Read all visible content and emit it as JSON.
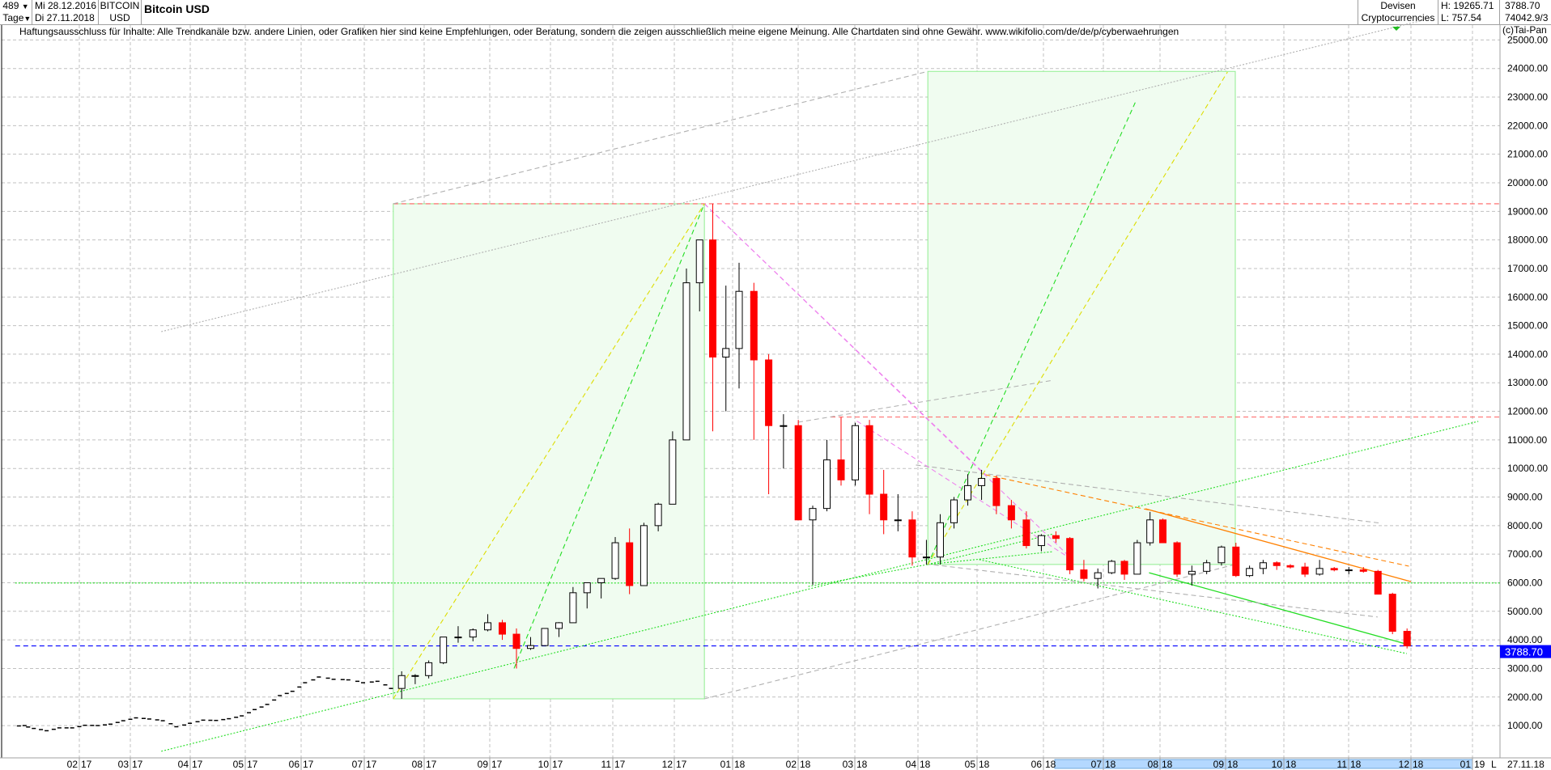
{
  "header": {
    "bar_count": "489",
    "period": "Tage",
    "start_date": "Mi 28.12.2016",
    "end_date": "Di 27.11.2018",
    "symbol_line1": "BITCOIN",
    "symbol_line2": "USD",
    "title": "Bitcoin USD",
    "category_line1": "Devisen",
    "category_line2": "Cryptocurrencies",
    "high": "H: 19265.71",
    "low": "L: 757.54",
    "last": "3788.70",
    "volume": "74042.9/3"
  },
  "disclaimer": "Haftungsausschluss für Inhalte: Alle Trendkanäle bzw. andere Linien, oder Grafiken hier sind keine Empfehlungen, oder Beratung, sondern die zeigen ausschließlich meine eigene Meinung. Alle Chartdaten sind ohne Gewähr.  www.wikifolio.com/de/de/p/cyberwaehrungen",
  "copyright": "(c)Tai-Pan",
  "footer": {
    "mode_label": "L",
    "last_date": "27.11.18"
  },
  "colors": {
    "up": "#ffffff",
    "down": "#ff0000",
    "outline": "#000000",
    "grid": "#c0c0c0",
    "last_price_tag": "#0000ff",
    "box_fill": "#f0fcf0",
    "box_stroke": "#90ee90",
    "timeline_highlight": "#b4d8ff"
  },
  "chart_data": {
    "type": "candlestick",
    "title": "Bitcoin USD",
    "ylim": [
      0,
      25800
    ],
    "y_ticks": [
      1000,
      2000,
      3000,
      4000,
      5000,
      6000,
      7000,
      8000,
      9000,
      10000,
      11000,
      12000,
      13000,
      14000,
      15000,
      16000,
      17000,
      18000,
      19000,
      20000,
      21000,
      22000,
      23000,
      24000,
      25000
    ],
    "x_ticks": [
      {
        "m": "02",
        "y": "17"
      },
      {
        "m": "03",
        "y": "17"
      },
      {
        "m": "04",
        "y": "17"
      },
      {
        "m": "05",
        "y": "17"
      },
      {
        "m": "06",
        "y": "17"
      },
      {
        "m": "07",
        "y": "17"
      },
      {
        "m": "08",
        "y": "17"
      },
      {
        "m": "09",
        "y": "17"
      },
      {
        "m": "10",
        "y": "17"
      },
      {
        "m": "11",
        "y": "17"
      },
      {
        "m": "12",
        "y": "17"
      },
      {
        "m": "01",
        "y": "18"
      },
      {
        "m": "02",
        "y": "18"
      },
      {
        "m": "03",
        "y": "18"
      },
      {
        "m": "04",
        "y": "18"
      },
      {
        "m": "05",
        "y": "18"
      },
      {
        "m": "06",
        "y": "18"
      },
      {
        "m": "07",
        "y": "18"
      },
      {
        "m": "08",
        "y": "18"
      },
      {
        "m": "09",
        "y": "18"
      },
      {
        "m": "10",
        "y": "18"
      },
      {
        "m": "11",
        "y": "18"
      },
      {
        "m": "12",
        "y": "18"
      },
      {
        "m": "01",
        "y": "19"
      }
    ],
    "grid": true,
    "last_price": 3788.7,
    "candles": [
      [
        "2016-12-28",
        975,
        1130,
        930,
        1000
      ],
      [
        "2017-01-02",
        1000,
        1150,
        880,
        900
      ],
      [
        "2017-01-09",
        900,
        920,
        750,
        820
      ],
      [
        "2017-01-16",
        820,
        930,
        820,
        920
      ],
      [
        "2017-01-23",
        920,
        930,
        890,
        920
      ],
      [
        "2017-01-30",
        920,
        1030,
        910,
        1010
      ],
      [
        "2017-02-06",
        1010,
        1070,
        940,
        1000
      ],
      [
        "2017-02-13",
        1000,
        1060,
        990,
        1050
      ],
      [
        "2017-02-20",
        1050,
        1200,
        1050,
        1170
      ],
      [
        "2017-02-27",
        1170,
        1290,
        1160,
        1270
      ],
      [
        "2017-03-06",
        1270,
        1290,
        980,
        1230
      ],
      [
        "2017-03-13",
        1230,
        1250,
        1160,
        1170
      ],
      [
        "2017-03-20",
        1170,
        1175,
        890,
        960
      ],
      [
        "2017-03-27",
        960,
        1090,
        940,
        1080
      ],
      [
        "2017-04-03",
        1080,
        1210,
        1070,
        1190
      ],
      [
        "2017-04-10",
        1190,
        1220,
        1160,
        1180
      ],
      [
        "2017-04-17",
        1180,
        1250,
        1170,
        1240
      ],
      [
        "2017-04-24",
        1240,
        1350,
        1230,
        1340
      ],
      [
        "2017-05-01",
        1340,
        1600,
        1340,
        1560
      ],
      [
        "2017-05-08",
        1560,
        1800,
        1560,
        1740
      ],
      [
        "2017-05-15",
        1740,
        2100,
        1700,
        2050
      ],
      [
        "2017-05-22",
        2050,
        2760,
        2000,
        2200
      ],
      [
        "2017-05-29",
        2200,
        2500,
        2100,
        2500
      ],
      [
        "2017-06-05",
        2500,
        2980,
        2500,
        2700
      ],
      [
        "2017-06-12",
        2700,
        2950,
        2300,
        2620
      ],
      [
        "2017-06-19",
        2620,
        2750,
        2500,
        2600
      ],
      [
        "2017-06-26",
        2600,
        2600,
        2400,
        2500
      ],
      [
        "2017-07-03",
        2500,
        2650,
        2480,
        2550
      ],
      [
        "2017-07-10",
        2550,
        2560,
        2200,
        2300
      ],
      [
        "2017-07-17",
        2300,
        2900,
        1937,
        2750
      ],
      [
        "2017-07-24",
        2750,
        2800,
        2450,
        2750
      ],
      [
        "2017-07-31",
        2750,
        3280,
        2650,
        3200
      ],
      [
        "2017-08-07",
        3200,
        4100,
        3150,
        4100
      ],
      [
        "2017-08-14",
        4100,
        4480,
        3900,
        4100
      ],
      [
        "2017-08-21",
        4100,
        4400,
        3950,
        4350
      ],
      [
        "2017-08-28",
        4350,
        4900,
        4300,
        4600
      ],
      [
        "2017-09-04",
        4600,
        4700,
        4000,
        4200
      ],
      [
        "2017-09-11",
        4200,
        4400,
        3000,
        3700
      ],
      [
        "2017-09-18",
        3700,
        4100,
        3650,
        3800
      ],
      [
        "2017-09-25",
        3800,
        4400,
        3800,
        4400
      ],
      [
        "2017-10-02",
        4400,
        4620,
        4100,
        4600
      ],
      [
        "2017-10-09",
        4600,
        5850,
        4600,
        5650
      ],
      [
        "2017-10-16",
        5650,
        6000,
        5100,
        6000
      ],
      [
        "2017-10-23",
        6000,
        6150,
        5450,
        6150
      ],
      [
        "2017-10-30",
        6150,
        7600,
        6100,
        7400
      ],
      [
        "2017-11-06",
        7400,
        7900,
        5600,
        5900
      ],
      [
        "2017-11-13",
        5900,
        8100,
        5900,
        8000
      ],
      [
        "2017-11-20",
        8000,
        8800,
        7800,
        8750
      ],
      [
        "2017-11-27",
        8750,
        11300,
        8750,
        11000
      ],
      [
        "2017-12-04",
        11000,
        17000,
        11000,
        16500
      ],
      [
        "2017-12-11",
        16500,
        18000,
        15500,
        18000
      ],
      [
        "2017-12-18",
        18000,
        19266,
        11300,
        13900
      ],
      [
        "2017-12-25",
        13900,
        16400,
        12000,
        14200
      ],
      [
        "2018-01-01",
        14200,
        17200,
        12800,
        16200
      ],
      [
        "2018-01-08",
        16200,
        16500,
        11000,
        13800
      ],
      [
        "2018-01-15",
        13800,
        14000,
        9100,
        11500
      ],
      [
        "2018-01-22",
        11500,
        11900,
        10000,
        11500
      ],
      [
        "2018-01-29",
        11500,
        11700,
        8200,
        8200
      ],
      [
        "2018-02-05",
        8200,
        8700,
        5920,
        8600
      ],
      [
        "2018-02-12",
        8600,
        11000,
        8500,
        10300
      ],
      [
        "2018-02-19",
        10300,
        11800,
        9400,
        9600
      ],
      [
        "2018-02-26",
        9600,
        11600,
        9400,
        11500
      ],
      [
        "2018-03-05",
        11500,
        11700,
        8400,
        9100
      ],
      [
        "2018-03-12",
        9100,
        9950,
        7700,
        8200
      ],
      [
        "2018-03-19",
        8200,
        9100,
        7800,
        8200
      ],
      [
        "2018-03-26",
        8200,
        8500,
        6600,
        6900
      ],
      [
        "2018-04-02",
        6900,
        7500,
        6640,
        6900
      ],
      [
        "2018-04-09",
        6900,
        8400,
        6640,
        8100
      ],
      [
        "2018-04-16",
        8100,
        9000,
        7900,
        8900
      ],
      [
        "2018-04-23",
        8900,
        9800,
        8700,
        9400
      ],
      [
        "2018-04-30",
        9400,
        9950,
        8900,
        9650
      ],
      [
        "2018-05-07",
        9650,
        9750,
        8400,
        8700
      ],
      [
        "2018-05-14",
        8700,
        8900,
        7900,
        8200
      ],
      [
        "2018-05-21",
        8200,
        8500,
        7200,
        7300
      ],
      [
        "2018-05-28",
        7300,
        7700,
        7100,
        7650
      ],
      [
        "2018-06-04",
        7650,
        7800,
        7400,
        7550
      ],
      [
        "2018-06-11",
        7550,
        7600,
        6300,
        6450
      ],
      [
        "2018-06-18",
        6450,
        6800,
        6050,
        6150
      ],
      [
        "2018-06-25",
        6150,
        6500,
        5800,
        6350
      ],
      [
        "2018-07-02",
        6350,
        6800,
        6300,
        6750
      ],
      [
        "2018-07-09",
        6750,
        6800,
        6100,
        6300
      ],
      [
        "2018-07-16",
        6300,
        7500,
        6300,
        7400
      ],
      [
        "2018-07-23",
        7400,
        8480,
        7300,
        8200
      ],
      [
        "2018-07-30",
        8200,
        8250,
        7400,
        7400
      ],
      [
        "2018-08-06",
        7400,
        7450,
        6200,
        6300
      ],
      [
        "2018-08-13",
        6300,
        6600,
        5900,
        6400
      ],
      [
        "2018-08-20",
        6400,
        6800,
        6300,
        6700
      ],
      [
        "2018-08-27",
        6700,
        7300,
        6600,
        7250
      ],
      [
        "2018-09-03",
        7250,
        7400,
        6200,
        6250
      ],
      [
        "2018-09-10",
        6250,
        6600,
        6200,
        6500
      ],
      [
        "2018-09-17",
        6500,
        6800,
        6300,
        6700
      ],
      [
        "2018-09-24",
        6700,
        6750,
        6450,
        6600
      ],
      [
        "2018-10-01",
        6600,
        6650,
        6500,
        6550
      ],
      [
        "2018-10-08",
        6550,
        6700,
        6200,
        6300
      ],
      [
        "2018-10-15",
        6300,
        6800,
        6250,
        6500
      ],
      [
        "2018-10-22",
        6500,
        6550,
        6400,
        6450
      ],
      [
        "2018-10-29",
        6450,
        6550,
        6300,
        6450
      ],
      [
        "2018-11-05",
        6450,
        6550,
        6350,
        6400
      ],
      [
        "2018-11-12",
        6400,
        6450,
        5600,
        5600
      ],
      [
        "2018-11-19",
        5600,
        5650,
        4200,
        4300
      ],
      [
        "2018-11-26",
        4300,
        4400,
        3700,
        3788.7
      ]
    ],
    "boxes": [
      {
        "from": "2017-07-16",
        "to": "2017-12-17",
        "low": 1937,
        "high": 19266
      },
      {
        "from": "2018-04-06",
        "to": "2018-09-06",
        "low": 6640,
        "high": 23900
      }
    ],
    "lines": [
      {
        "name": "red-horizontal-high",
        "kind": "horizontal",
        "price": 19266,
        "from": "2017-07-16",
        "color": "#ff6060",
        "dash": "dashed"
      },
      {
        "name": "red-horizontal-resistance",
        "kind": "horizontal",
        "price": 11800,
        "from": "2018-02-17",
        "color": "#ff6060",
        "dash": "dashed"
      },
      {
        "name": "green-horizontal-support",
        "kind": "horizontal",
        "price": 5990,
        "from": "2016-12-28",
        "color": "#22dd22",
        "dash": "dotted"
      },
      {
        "name": "last-price-line",
        "kind": "horizontal",
        "price": 3788.7,
        "from": "2016-12-28",
        "color": "#0000ff",
        "dash": "dashed"
      },
      {
        "name": "gray-box-connector-top",
        "p1": [
          "2017-07-16",
          19266
        ],
        "p2": [
          "2018-04-06",
          23900
        ],
        "color": "#b0b0b0",
        "dash": "dashed"
      },
      {
        "name": "gray-box-connector-bottom",
        "p1": [
          "2017-12-17",
          1937
        ],
        "p2": [
          "2018-09-06",
          6640
        ],
        "color": "#b0b0b0",
        "dash": "dashed"
      },
      {
        "name": "gray-long-trend",
        "p1": [
          "2017-03-17",
          14790
        ],
        "p2": [
          "2018-12-07",
          25690
        ],
        "color": "#b0b0b0",
        "dash": "dotted"
      },
      {
        "name": "green-long-uptrend",
        "p1": [
          "2017-03-17",
          100
        ],
        "p2": [
          "2019-01-04",
          11650
        ],
        "color": "#22dd22",
        "dash": "dotted"
      },
      {
        "name": "green-lows-trend",
        "p1": [
          "2018-02-06",
          5870
        ],
        "p2": [
          "2018-04-06",
          6640
        ],
        "color": "#22dd22",
        "dash": "dotted"
      },
      {
        "name": "green-fan-1",
        "p1": [
          "2018-04-06",
          6640
        ],
        "p2": [
          "2018-06-06",
          7710
        ],
        "color": "#22dd22",
        "dash": "dotted"
      },
      {
        "name": "green-fan-2",
        "p1": [
          "2018-04-06",
          6640
        ],
        "p2": [
          "2018-06-06",
          7090
        ],
        "color": "#22dd22",
        "dash": "dotted"
      },
      {
        "name": "green-down-channel-lower",
        "p1": [
          "2018-05-02",
          6810
        ],
        "p2": [
          "2018-11-29",
          3520
        ],
        "color": "#22dd22",
        "dash": "dotted"
      },
      {
        "name": "green-down-channel",
        "p1": [
          "2018-07-26",
          6350
        ],
        "p2": [
          "2018-12-01",
          3810
        ],
        "color": "#22dd22",
        "dash": "solid"
      },
      {
        "name": "orange-trend-dashed",
        "p1": [
          "2018-05-05",
          9780
        ],
        "p2": [
          "2018-11-30",
          6580
        ],
        "color": "#ff8000",
        "dash": "dashed"
      },
      {
        "name": "orange-trend",
        "p1": [
          "2018-07-24",
          8590
        ],
        "p2": [
          "2018-12-01",
          6040
        ],
        "color": "#ff8000",
        "dash": "solid"
      },
      {
        "name": "gray-trend-1",
        "p1": [
          "2018-03-31",
          10120
        ],
        "p2": [
          "2018-11-17",
          8080
        ],
        "color": "#b0b0b0",
        "dash": "dashed"
      },
      {
        "name": "gray-trend-2",
        "p1": [
          "2018-04-05",
          6660
        ],
        "p2": [
          "2018-11-15",
          4800
        ],
        "color": "#b0b0b0",
        "dash": "dashed"
      },
      {
        "name": "gray-trend-3",
        "p1": [
          "2018-02-01",
          11620
        ],
        "p2": [
          "2018-06-06",
          13090
        ],
        "color": "#b0b0b0",
        "dash": "dashed"
      },
      {
        "name": "pink-fan-1",
        "p1": [
          "2017-12-17",
          19266
        ],
        "p2": [
          "2018-05-05",
          9780
        ],
        "color": "#ee82ee",
        "dash": "dashed"
      },
      {
        "name": "pink-fan-2",
        "p1": [
          "2017-12-17",
          19266
        ],
        "p2": [
          "2018-06-16",
          6780
        ],
        "color": "#ee82ee",
        "dash": "dashed"
      },
      {
        "name": "pink-fan-3",
        "p1": [
          "2018-03-02",
          11660
        ],
        "p2": [
          "2018-06-16",
          6780
        ],
        "color": "#ee82ee",
        "dash": "dashed"
      },
      {
        "name": "green-steep-2017",
        "p1": [
          "2017-09-13",
          3000
        ],
        "p2": [
          "2017-12-17",
          19266
        ],
        "color": "#22dd22",
        "dash": "dashed"
      },
      {
        "name": "yellow-steep-2017",
        "p1": [
          "2017-07-16",
          1937
        ],
        "p2": [
          "2017-12-17",
          19266
        ],
        "color": "#dddd00",
        "dash": "dashed"
      },
      {
        "name": "green-steep-2018",
        "p1": [
          "2018-04-06",
          6640
        ],
        "p2": [
          "2018-07-19",
          22890
        ],
        "color": "#22dd22",
        "dash": "dashed"
      },
      {
        "name": "yellow-steep-2018",
        "p1": [
          "2018-04-06",
          6640
        ],
        "p2": [
          "2018-09-02",
          23880
        ],
        "color": "#dddd00",
        "dash": "dashed"
      }
    ]
  }
}
